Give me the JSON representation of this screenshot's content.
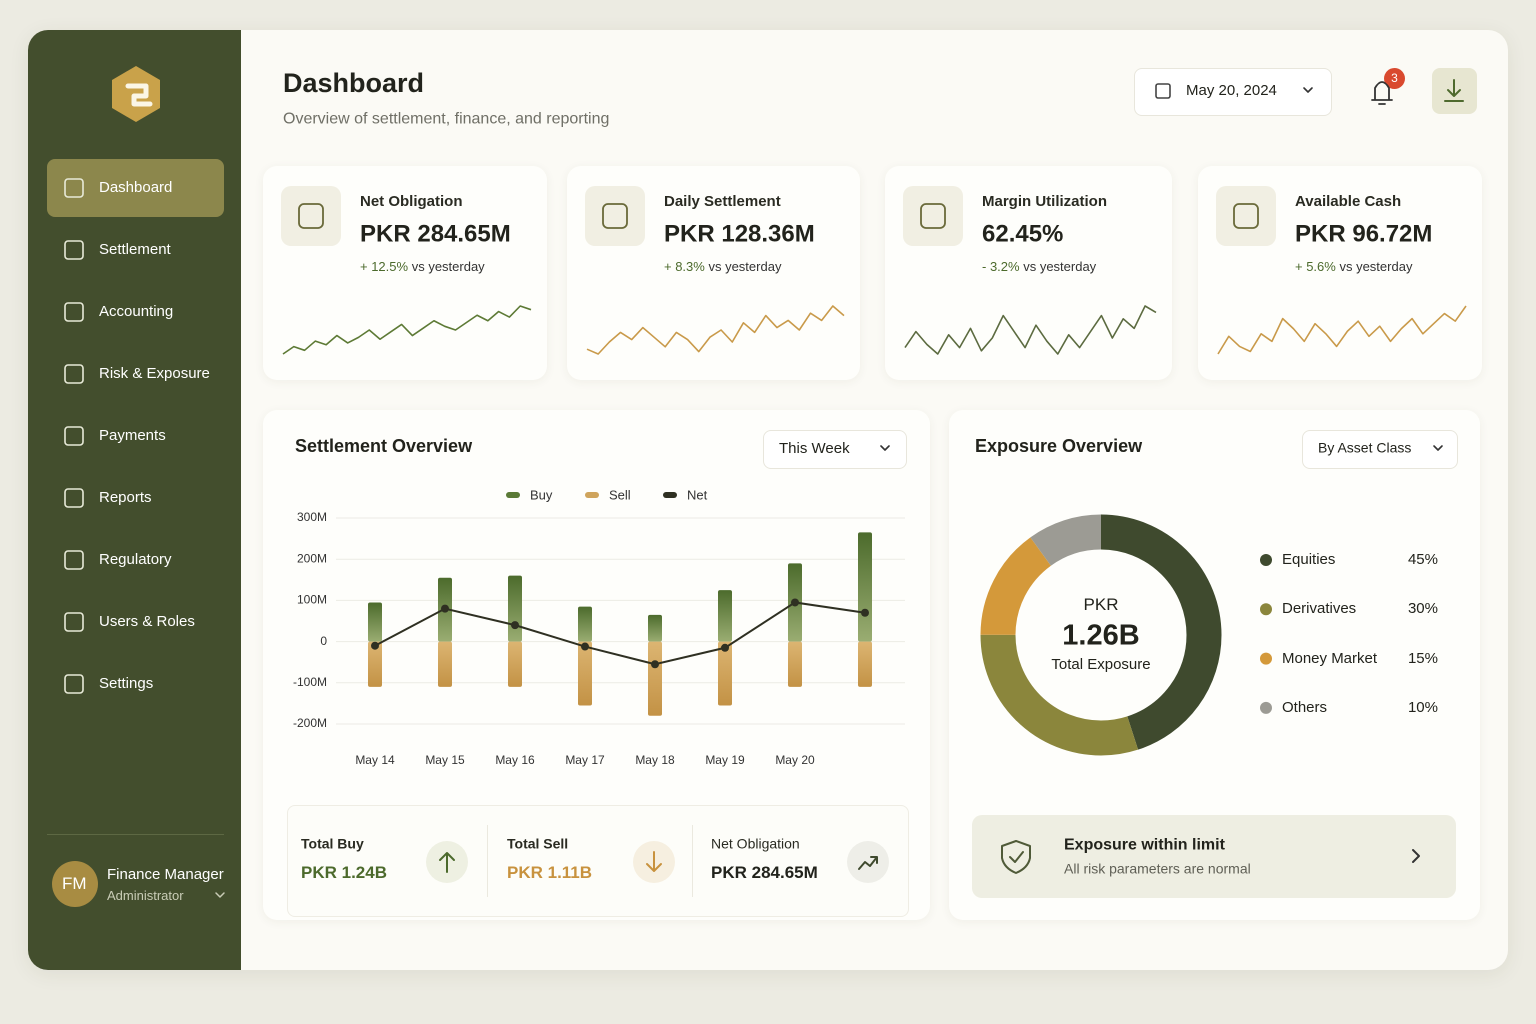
{
  "sidebar": {
    "nav": [
      "Dashboard",
      "Settlement",
      "Accounting",
      "Risk & Exposure",
      "Payments",
      "Reports",
      "Regulatory",
      "Users & Roles",
      "Settings"
    ],
    "user": {
      "initials": "FM",
      "name": "Finance Manager",
      "role": "Administrator"
    }
  },
  "header": {
    "title": "Dashboard",
    "subtitle": "Overview of settlement, finance, and reporting",
    "date": "May 20, 2024",
    "notifications": 3
  },
  "kpis": [
    {
      "label": "Net Obligation",
      "value": "PKR 284.65M",
      "change": "+ 12.5%",
      "note": "vs yesterday",
      "color": "#5d7a35",
      "trend": [
        10,
        18,
        14,
        24,
        20,
        30,
        22,
        28,
        36,
        26,
        34,
        42,
        30,
        38,
        46,
        40,
        36,
        44,
        52,
        46,
        56,
        50,
        62,
        58
      ]
    },
    {
      "label": "Daily Settlement",
      "value": "PKR 128.36M",
      "change": "+ 8.3%",
      "note": "vs yesterday",
      "color": "#c99a4a",
      "trend": [
        20,
        16,
        26,
        34,
        28,
        38,
        30,
        22,
        34,
        28,
        18,
        30,
        36,
        26,
        42,
        34,
        48,
        38,
        44,
        36,
        50,
        44,
        56,
        48
      ]
    },
    {
      "label": "Margin Utilization",
      "value": "62.45%",
      "change": "- 3.2%",
      "note": "vs yesterday",
      "color": "#5c6b40",
      "trend": [
        30,
        40,
        32,
        26,
        38,
        30,
        42,
        28,
        36,
        50,
        40,
        30,
        44,
        34,
        26,
        38,
        30,
        40,
        50,
        36,
        48,
        42,
        56,
        52
      ]
    },
    {
      "label": "Available Cash",
      "value": "PKR 96.72M",
      "change": "+ 5.6%",
      "note": "vs yesterday",
      "color": "#c99a4a",
      "trend": [
        20,
        34,
        26,
        22,
        36,
        30,
        48,
        40,
        30,
        44,
        36,
        26,
        38,
        46,
        34,
        42,
        30,
        40,
        48,
        36,
        44,
        52,
        46,
        58
      ]
    }
  ],
  "chart_data": [
    {
      "type": "combo",
      "title": "Settlement Overview",
      "filter": "This Week",
      "categories": [
        "May 14",
        "May 15",
        "May 16",
        "May 17",
        "May 18",
        "May 19",
        "May 20",
        null
      ],
      "series": [
        {
          "name": "Buy",
          "color": "#5b7a36",
          "values": [
            95,
            155,
            160,
            85,
            65,
            125,
            190,
            265
          ]
        },
        {
          "name": "Sell",
          "color": "#cfa45c",
          "values": [
            -110,
            -110,
            -110,
            -155,
            -180,
            -155,
            -110,
            -110
          ]
        },
        {
          "name": "Net",
          "color": "#2f3022",
          "values": [
            -10,
            80,
            40,
            -12,
            -55,
            -15,
            95,
            70
          ]
        }
      ],
      "ylim": [
        -200,
        300
      ],
      "yticks": [
        {
          "value": 300,
          "label": "300M"
        },
        {
          "value": 200,
          "label": "200M"
        },
        {
          "value": 100,
          "label": "100M"
        },
        0,
        {
          "value": -100,
          "label": "-100M"
        },
        {
          "value": -200,
          "label": "-200M"
        }
      ],
      "grid": true
    },
    {
      "type": "donut",
      "title": "Exposure Overview",
      "filter": "By Asset Class",
      "center": {
        "currency": "PKR",
        "value": "1.26B",
        "label": "Total Exposure"
      },
      "categories": [
        "Equities",
        "Derivatives",
        "Money Market",
        "Others"
      ],
      "values": [
        45,
        30,
        15,
        10
      ],
      "value_labels": [
        "45%",
        "30%",
        "15%",
        "10%"
      ],
      "colors": [
        "#3f4a2e",
        "#8b863c",
        "#d4993a",
        "#9c9b94"
      ]
    }
  ],
  "summary": [
    {
      "label": "Total Buy",
      "value": "PKR 1.24B"
    },
    {
      "label": "Total Sell",
      "value": "PKR 1.11B"
    },
    {
      "label": "Net Obligation",
      "value": "PKR 284.65M"
    }
  ],
  "status": {
    "title": "Exposure within limit",
    "subtitle": "All risk parameters are normal"
  }
}
